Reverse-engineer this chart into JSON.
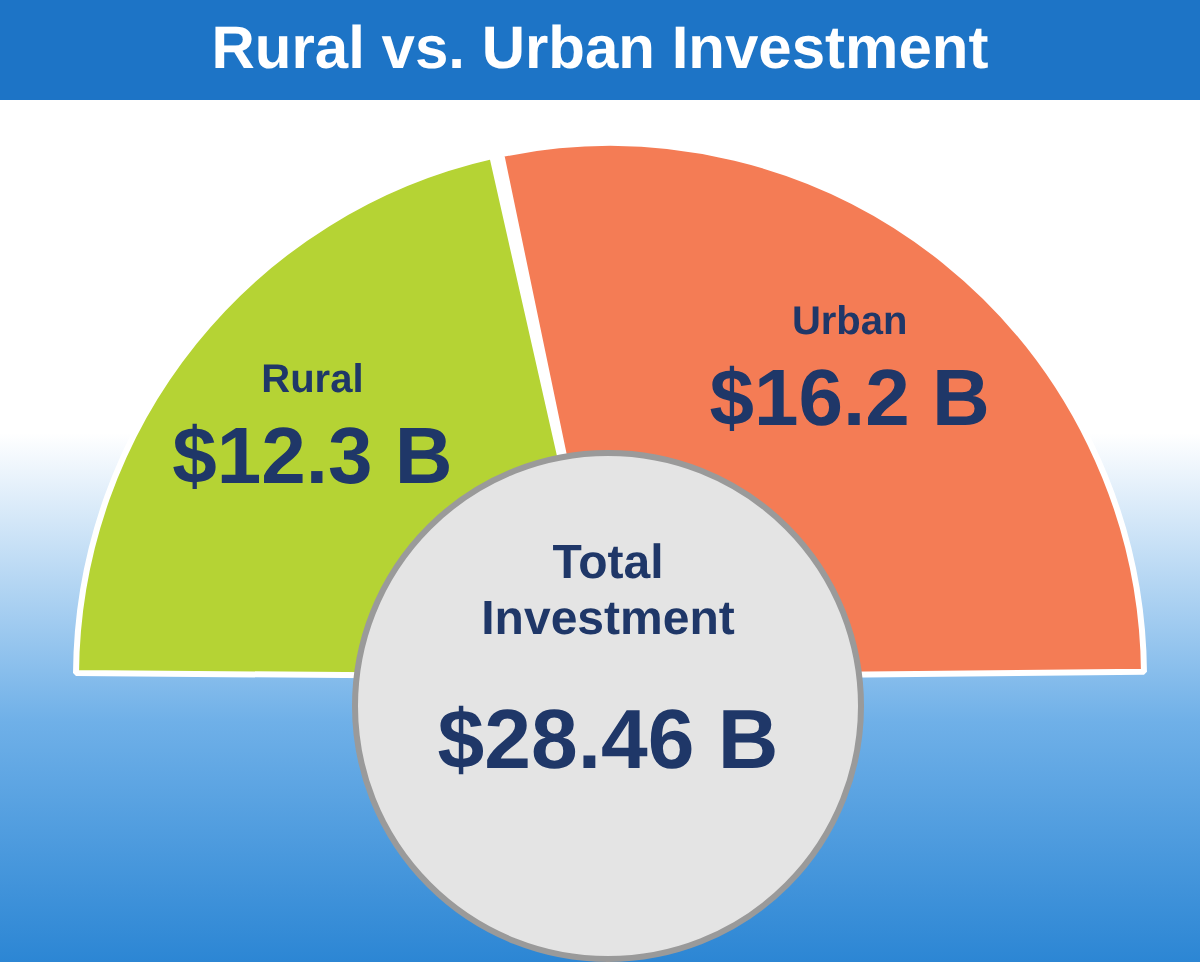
{
  "chart_data": {
    "type": "donut",
    "title": "Rural vs. Urban Investment",
    "categories": [
      "Rural",
      "Urban"
    ],
    "values": [
      12.3,
      16.2
    ],
    "colors": [
      "#b5d334",
      "#f47c55"
    ],
    "value_labels": [
      "$12.3 B",
      "$16.2 B"
    ],
    "annotations": [
      "Total Investment",
      "$28.46 B"
    ],
    "legend": false
  }
}
